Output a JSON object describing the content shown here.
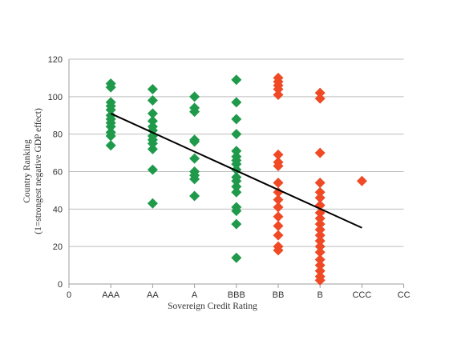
{
  "chart_data": {
    "type": "scatter",
    "title": "",
    "xlabel": "Sovereign Credit Rating",
    "ylabel": [
      "Country Ranking",
      "(1=strongest negative GDP effect)"
    ],
    "x_tick_labels": [
      "0",
      "AAA",
      "AA",
      "A",
      "BBB",
      "BB",
      "B",
      "CCC",
      "CC"
    ],
    "y_ticks": [
      0,
      20,
      40,
      60,
      80,
      100,
      120
    ],
    "ylim": [
      0,
      120
    ],
    "xlim": [
      0,
      8
    ],
    "grid": "horizontal",
    "legend": "none",
    "colors": {
      "green": "#1f9a4a",
      "red": "#ef4a25",
      "trend": "#000000",
      "grid": "#bdbdbd",
      "axis": "#9e9e9e"
    },
    "series": [
      {
        "color": "green",
        "points": [
          [
            1,
            107
          ],
          [
            1,
            105
          ],
          [
            1,
            97
          ],
          [
            1,
            95
          ],
          [
            1,
            93
          ],
          [
            1,
            90
          ],
          [
            1,
            88
          ],
          [
            1,
            86
          ],
          [
            1,
            84
          ],
          [
            1,
            81
          ],
          [
            1,
            79
          ],
          [
            1,
            74
          ],
          [
            2,
            104
          ],
          [
            2,
            98
          ],
          [
            2,
            91
          ],
          [
            2,
            87
          ],
          [
            2,
            84
          ],
          [
            2,
            82
          ],
          [
            2,
            79
          ],
          [
            2,
            77
          ],
          [
            2,
            75
          ],
          [
            2,
            72
          ],
          [
            2,
            61
          ],
          [
            2,
            43
          ],
          [
            3,
            100
          ],
          [
            3,
            94
          ],
          [
            3,
            92
          ],
          [
            3,
            77
          ],
          [
            3,
            76
          ],
          [
            3,
            67
          ],
          [
            3,
            60
          ],
          [
            3,
            58
          ],
          [
            3,
            56
          ],
          [
            3,
            47
          ],
          [
            4,
            109
          ],
          [
            4,
            97
          ],
          [
            4,
            88
          ],
          [
            4,
            80
          ],
          [
            4,
            71
          ],
          [
            4,
            68
          ],
          [
            4,
            66
          ],
          [
            4,
            64
          ],
          [
            4,
            61
          ],
          [
            4,
            57
          ],
          [
            4,
            55
          ],
          [
            4,
            52
          ],
          [
            4,
            49
          ],
          [
            4,
            41
          ],
          [
            4,
            39
          ],
          [
            4,
            32
          ],
          [
            4,
            14
          ]
        ]
      },
      {
        "color": "red",
        "points": [
          [
            5,
            110
          ],
          [
            5,
            108
          ],
          [
            5,
            106
          ],
          [
            5,
            104
          ],
          [
            5,
            101
          ],
          [
            5,
            69
          ],
          [
            5,
            65
          ],
          [
            5,
            63
          ],
          [
            5,
            54
          ],
          [
            5,
            49
          ],
          [
            5,
            45
          ],
          [
            5,
            41
          ],
          [
            5,
            36
          ],
          [
            5,
            31
          ],
          [
            5,
            26
          ],
          [
            5,
            20
          ],
          [
            5,
            18
          ],
          [
            6,
            102
          ],
          [
            6,
            99
          ],
          [
            6,
            70
          ],
          [
            6,
            54
          ],
          [
            6,
            49
          ],
          [
            6,
            46
          ],
          [
            6,
            42
          ],
          [
            6,
            38
          ],
          [
            6,
            35
          ],
          [
            6,
            32
          ],
          [
            6,
            29
          ],
          [
            6,
            26
          ],
          [
            6,
            23
          ],
          [
            6,
            20
          ],
          [
            6,
            17
          ],
          [
            6,
            13
          ],
          [
            6,
            10
          ],
          [
            6,
            7
          ],
          [
            6,
            4
          ],
          [
            6,
            2
          ],
          [
            7,
            55
          ]
        ]
      }
    ],
    "trendline": {
      "x": [
        1,
        7
      ],
      "y": [
        91,
        30
      ]
    }
  }
}
